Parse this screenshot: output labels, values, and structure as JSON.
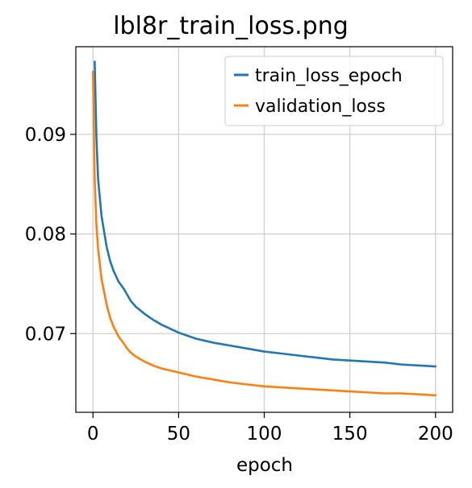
{
  "chart_data": {
    "type": "line",
    "title": "lbl8r_train_loss.png",
    "xlabel": "epoch",
    "ylabel": "",
    "xlim": [
      -10,
      210
    ],
    "ylim": [
      0.0621,
      0.0988
    ],
    "xticks": [
      0,
      50,
      100,
      150,
      200
    ],
    "xtick_labels": [
      "0",
      "50",
      "100",
      "150",
      "200"
    ],
    "yticks": [
      0.07,
      0.08,
      0.09
    ],
    "ytick_labels": [
      "0.07",
      "0.08",
      "0.09"
    ],
    "grid": true,
    "legend_position": "top-right",
    "series": [
      {
        "name": "train_loss_epoch",
        "color": "#1f77b4",
        "x": [
          1,
          2,
          3,
          5,
          8,
          10,
          12,
          15,
          18,
          20,
          22,
          25,
          30,
          35,
          40,
          45,
          50,
          55,
          60,
          70,
          80,
          90,
          100,
          110,
          120,
          130,
          140,
          150,
          160,
          170,
          180,
          190,
          200
        ],
        "values": [
          0.0973,
          0.0898,
          0.0855,
          0.0818,
          0.0787,
          0.0773,
          0.0763,
          0.0752,
          0.0745,
          0.0739,
          0.0733,
          0.0727,
          0.072,
          0.0714,
          0.0709,
          0.0705,
          0.0701,
          0.0698,
          0.0695,
          0.0691,
          0.0688,
          0.0685,
          0.0682,
          0.068,
          0.0678,
          0.0676,
          0.0674,
          0.0673,
          0.0672,
          0.0671,
          0.0669,
          0.0668,
          0.0667
        ]
      },
      {
        "name": "validation_loss",
        "color": "#ff7f0e",
        "x": [
          0,
          1,
          2,
          3,
          5,
          8,
          10,
          12,
          15,
          18,
          20,
          22,
          25,
          30,
          35,
          40,
          45,
          50,
          55,
          60,
          70,
          80,
          90,
          100,
          110,
          120,
          130,
          140,
          150,
          160,
          170,
          180,
          190,
          200
        ],
        "values": [
          0.0963,
          0.0855,
          0.081,
          0.0785,
          0.0755,
          0.0729,
          0.0716,
          0.0707,
          0.0697,
          0.069,
          0.0685,
          0.0681,
          0.0677,
          0.0672,
          0.0668,
          0.0665,
          0.0663,
          0.0661,
          0.0659,
          0.0657,
          0.0654,
          0.0651,
          0.0649,
          0.0647,
          0.0646,
          0.0645,
          0.0644,
          0.0643,
          0.0642,
          0.0641,
          0.064,
          0.064,
          0.0639,
          0.0638
        ]
      }
    ]
  }
}
